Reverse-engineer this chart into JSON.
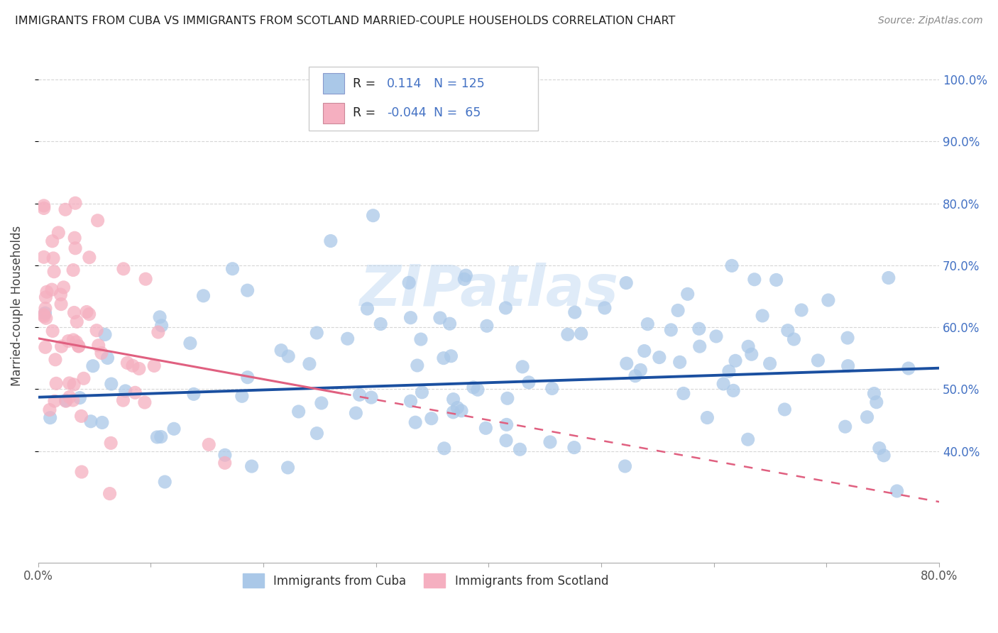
{
  "title": "IMMIGRANTS FROM CUBA VS IMMIGRANTS FROM SCOTLAND MARRIED-COUPLE HOUSEHOLDS CORRELATION CHART",
  "source": "Source: ZipAtlas.com",
  "ylabel": "Married-couple Households",
  "xlim": [
    0.0,
    0.8
  ],
  "ylim": [
    0.22,
    1.05
  ],
  "R_cuba": 0.114,
  "N_cuba": 125,
  "R_scotland": -0.044,
  "N_scotland": 65,
  "color_cuba": "#aac8e8",
  "color_scotland": "#f5afc0",
  "line_color_cuba": "#1a4fa0",
  "line_color_scotland": "#e06080",
  "watermark": "ZIPatlas",
  "legend_label_cuba": "Immigrants from Cuba",
  "legend_label_scotland": "Immigrants from Scotland",
  "cuba_line_x0": 0.0,
  "cuba_line_y0": 0.487,
  "cuba_line_x1": 0.8,
  "cuba_line_y1": 0.534,
  "scotland_line_x0": 0.0,
  "scotland_line_y0": 0.582,
  "scotland_line_x1": 0.8,
  "scotland_line_y1": 0.318
}
